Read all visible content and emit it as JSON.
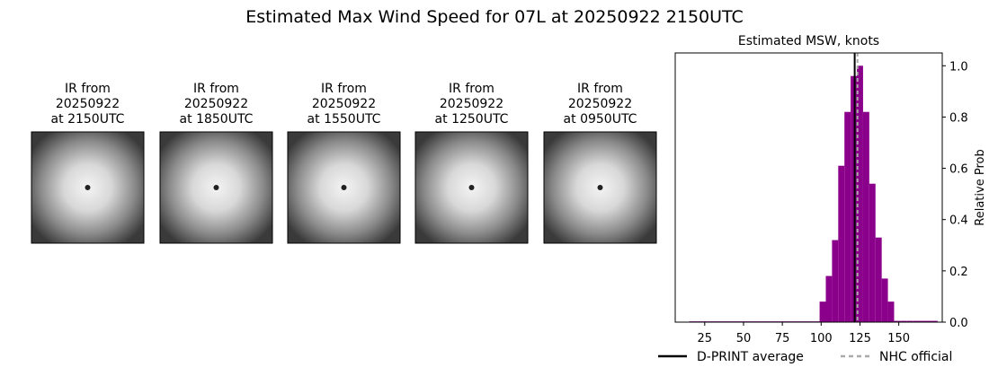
{
  "title": "Estimated Max Wind Speed for 07L at 20250922 2150UTC",
  "panels": [
    {
      "title_lines": [
        "IR from",
        "20250922",
        "at 2150UTC"
      ]
    },
    {
      "title_lines": [
        "IR from",
        "20250922",
        "at 1850UTC"
      ]
    },
    {
      "title_lines": [
        "IR from",
        "20250922",
        "at 1550UTC"
      ]
    },
    {
      "title_lines": [
        "IR from",
        "20250922",
        "at 1250UTC"
      ]
    },
    {
      "title_lines": [
        "IR from",
        "20250922",
        "at 0950UTC"
      ]
    }
  ],
  "chart_data": {
    "type": "histogram",
    "title": "Estimated MSW, knots",
    "y_label": "Relative Prob",
    "bins": [
      15,
      19,
      23,
      27,
      31,
      35,
      39,
      43,
      47,
      51,
      55,
      59,
      63,
      67,
      71,
      75,
      79,
      83,
      87,
      91,
      95,
      99,
      103,
      107,
      111,
      115,
      119,
      123,
      127,
      131,
      135,
      139,
      143,
      147,
      151,
      155,
      159,
      163,
      167,
      171,
      175
    ],
    "values": [
      0.003,
      0.003,
      0.003,
      0.003,
      0.003,
      0.003,
      0.003,
      0.003,
      0.003,
      0.003,
      0.003,
      0.003,
      0.003,
      0.003,
      0.003,
      0.003,
      0.003,
      0.003,
      0.003,
      0.003,
      0.003,
      0.08,
      0.18,
      0.32,
      0.61,
      0.82,
      0.96,
      1.0,
      0.82,
      0.54,
      0.33,
      0.17,
      0.08,
      0.005,
      0.005,
      0.005,
      0.005,
      0.005,
      0.005,
      0.005
    ],
    "color": "#8b008b",
    "xlim": [
      6,
      178
    ],
    "xticks": [
      25,
      50,
      75,
      100,
      125,
      150
    ],
    "ylim": [
      0,
      1.05
    ],
    "yticks": [
      {
        "value": 0,
        "label": "0.0"
      },
      0.2,
      0.4,
      0.6,
      0.8,
      {
        "value": 1,
        "label": "1.0"
      }
    ],
    "y_axis_side": "right",
    "vlines": [
      {
        "name": "D-PRINT average",
        "value": 121.6,
        "color": "#000000",
        "dashed": false
      },
      {
        "name": "NHC official",
        "value": 123.4,
        "color": "#aaaaaa",
        "dashed": true
      }
    ]
  }
}
